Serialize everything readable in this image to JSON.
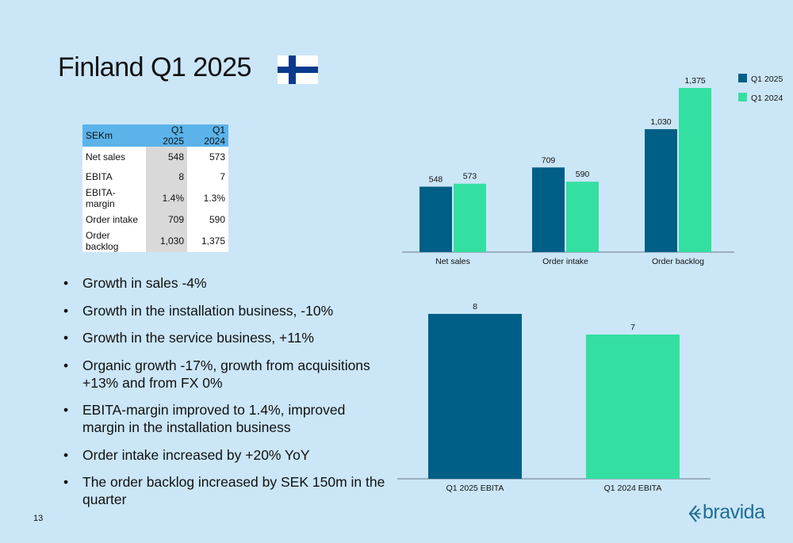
{
  "page": {
    "title": "Finland Q1 2025",
    "page_number": "13",
    "logo_text": "bravida",
    "colors": {
      "background": "#cbe6f7",
      "q1_2025": "#005f87",
      "q1_2024": "#33e0a1",
      "table_header": "#5bb3ea"
    }
  },
  "table": {
    "headers": [
      "SEKm",
      "Q1 2025",
      "Q1 2024"
    ],
    "rows": [
      [
        "Net sales",
        "548",
        "573"
      ],
      [
        "EBITA",
        "8",
        "7"
      ],
      [
        "EBITA-margin",
        "1.4%",
        "1.3%"
      ],
      [
        "Order intake",
        "709",
        "590"
      ],
      [
        "Order backlog",
        "1,030",
        "1,375"
      ]
    ]
  },
  "bullets": [
    "Growth in sales -4%",
    "Growth in the installation business, -10%",
    "Growth in the service business, +11%",
    "Organic growth -17%, growth from acquisitions +13% and from FX 0%",
    "EBITA-margin improved to 1.4%, improved margin in the installation business",
    "Order intake increased by +20% YoY",
    "The order backlog increased by SEK 150m in the quarter"
  ],
  "chart_data": [
    {
      "type": "bar",
      "categories": [
        "Net sales",
        "Order intake",
        "Order backlog"
      ],
      "series": [
        {
          "name": "Q1 2025",
          "values": [
            548,
            709,
            1030
          ],
          "labels": [
            "548",
            "709",
            "1,030"
          ],
          "color": "#005f87"
        },
        {
          "name": "Q1 2024",
          "values": [
            573,
            590,
            1375
          ],
          "labels": [
            "573",
            "590",
            "1,375"
          ],
          "color": "#33e0a1"
        }
      ],
      "legend": "top-right",
      "grid": false
    },
    {
      "type": "bar",
      "categories": [
        "Q1 2025 EBITA",
        "Q1 2024 EBITA"
      ],
      "values": [
        8,
        7
      ],
      "labels": [
        "8",
        "7"
      ],
      "colors": [
        "#005f87",
        "#33e0a1"
      ],
      "grid": false
    }
  ]
}
